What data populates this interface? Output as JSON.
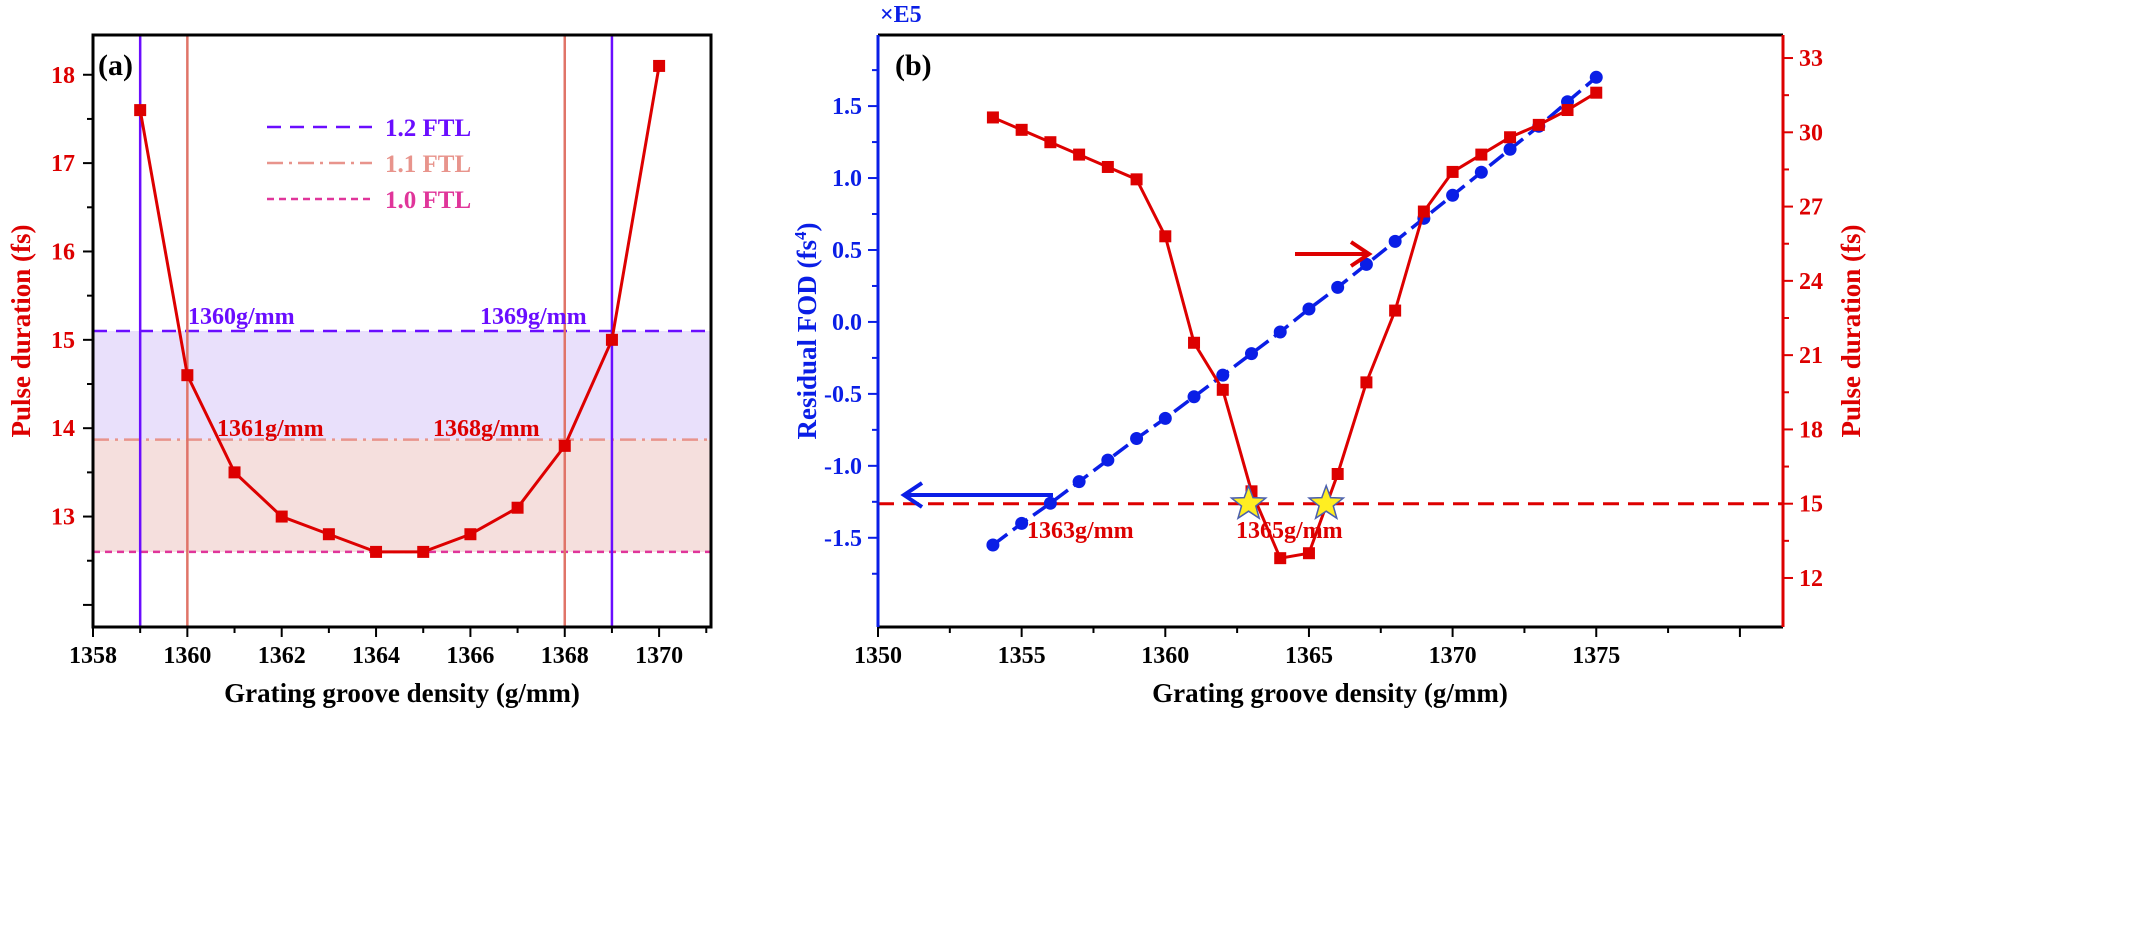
{
  "chart_data": [
    {
      "type": "line",
      "panel_label": "(a)",
      "xlabel": "Grating groove density (g/mm)",
      "ylabel": "Pulse duration (fs)",
      "xlim": [
        1358,
        1371.1
      ],
      "ylim": [
        11.75,
        18.45
      ],
      "xticks": [
        1358,
        1360,
        1362,
        1364,
        1366,
        1368,
        1370
      ],
      "yticks": [
        13,
        14,
        15,
        16,
        17,
        18
      ],
      "x": [
        1359,
        1360,
        1361,
        1362,
        1363,
        1364,
        1365,
        1366,
        1367,
        1368,
        1369,
        1370
      ],
      "y": [
        17.6,
        14.6,
        13.5,
        13.0,
        12.8,
        12.6,
        12.6,
        12.8,
        13.1,
        13.8,
        15.0,
        18.1
      ],
      "series_color": "#dd0000",
      "reference_lines": [
        {
          "name": "1.2 FTL",
          "value": 15.1,
          "color": "#6a0dff",
          "style": "dashed"
        },
        {
          "name": "1.1 FTL",
          "value": 13.87,
          "color": "#e8948c",
          "style": "dash-dot"
        },
        {
          "name": "1.0 FTL",
          "value": 12.6,
          "color": "#e0359a",
          "style": "short-dash"
        }
      ],
      "vertical_lines": [
        {
          "x": 1359,
          "color": "#6a0dff"
        },
        {
          "x": 1360,
          "color": "#e07468"
        },
        {
          "x": 1368,
          "color": "#e07468"
        },
        {
          "x": 1369,
          "color": "#6a0dff"
        }
      ],
      "bands": [
        {
          "from": 13.87,
          "to": 15.1,
          "color": "#e9e0fb"
        },
        {
          "from": 12.6,
          "to": 13.87,
          "color": "#f5dfdd"
        }
      ],
      "annotations": [
        {
          "text": "1360g/mm",
          "x": 1360,
          "y": 15.1,
          "color": "#6a0dff"
        },
        {
          "text": "1369g/mm",
          "x": 1369,
          "y": 15.1,
          "color": "#6a0dff"
        },
        {
          "text": "1361g/mm",
          "x": 1361,
          "y": 13.87,
          "color": "#dd0000"
        },
        {
          "text": "1368g/mm",
          "x": 1368,
          "y": 13.87,
          "color": "#dd0000"
        }
      ],
      "legend_position": "top-center"
    },
    {
      "type": "line",
      "panel_label": "(b)",
      "xlabel": "Grating groove density (g/mm)",
      "ylabel_left": "Residual FOD (fs",
      "ylabel_left_sup": "4",
      "ylabel_left_close": ")",
      "ylabel_right": "Pulse duration (fs)",
      "left_multiplier": "×E5",
      "xlim": [
        1350,
        1381.5
      ],
      "ylim_left": [
        -2.12,
        1.994
      ],
      "ylim_right": [
        10.02,
        33.93
      ],
      "xticks": [
        1350,
        1355,
        1360,
        1365,
        1370,
        1375
      ],
      "yticks_left": [
        "-1.5",
        "-1.0",
        "-0.5",
        "0.0",
        "0.5",
        "1.0",
        "1.5"
      ],
      "yticks_right": [
        12,
        15,
        18,
        21,
        24,
        27,
        30,
        33
      ],
      "x": [
        1354,
        1355,
        1356,
        1357,
        1358,
        1359,
        1360,
        1361,
        1362,
        1363,
        1364,
        1365,
        1366,
        1367,
        1368,
        1369,
        1370,
        1371,
        1372,
        1373,
        1374,
        1375
      ],
      "series": [
        {
          "axis": "left",
          "color": "#0a1ee6",
          "marker": "circle",
          "values": [
            -1.55,
            -1.4,
            -1.26,
            -1.11,
            -0.96,
            -0.81,
            -0.67,
            -0.52,
            -0.37,
            -0.22,
            -0.07,
            0.09,
            0.24,
            0.4,
            0.56,
            0.72,
            0.88,
            1.04,
            1.2,
            1.36,
            1.53,
            1.7
          ]
        },
        {
          "axis": "right",
          "color": "#dd0000",
          "marker": "square",
          "values": [
            30.6,
            30.1,
            29.6,
            29.1,
            28.6,
            28.1,
            25.8,
            21.5,
            19.6,
            15.5,
            12.8,
            13.0,
            16.2,
            19.9,
            22.8,
            26.8,
            28.4,
            29.1,
            29.8,
            30.3,
            30.9,
            31.6
          ]
        }
      ],
      "reference_line_right": {
        "value": 15.0,
        "color": "#dd0000",
        "style": "dashed"
      },
      "stars": [
        {
          "x": 1362.9,
          "y": 15.0
        },
        {
          "x": 1365.6,
          "y": 15.0
        }
      ],
      "star_color": "#ffee22",
      "annotations": [
        {
          "text": "1363g/mm",
          "color": "#dd0000"
        },
        {
          "text": "1365g/mm",
          "color": "#dd0000"
        }
      ]
    }
  ]
}
